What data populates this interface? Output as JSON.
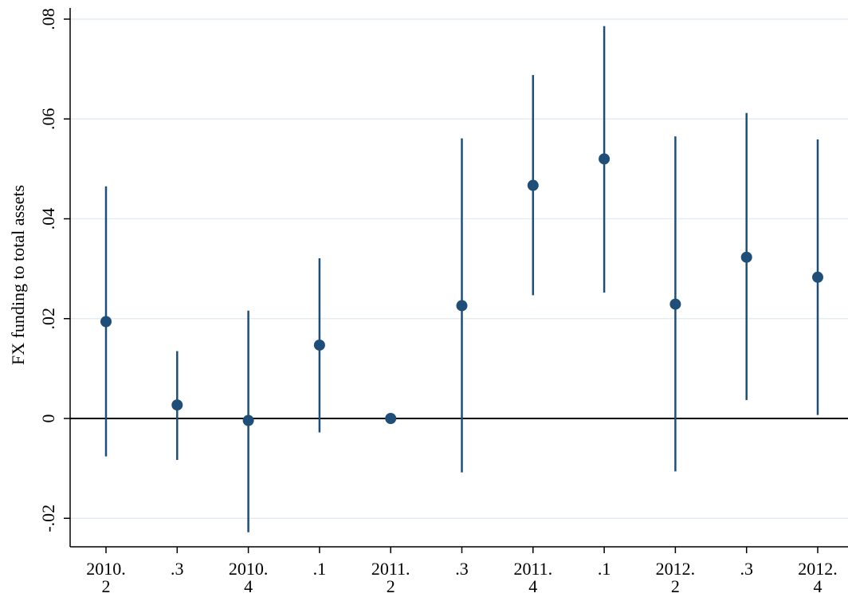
{
  "chart_data": {
    "type": "scatter",
    "subtype": "coefficient-plot-with-confidence-intervals",
    "title": "",
    "xlabel": "",
    "ylabel": "FX funding to total assets",
    "ylim": [
      -0.026,
      0.082
    ],
    "y_ticks": [
      {
        "value": -0.02,
        "label": "-.02"
      },
      {
        "value": 0,
        "label": "0"
      },
      {
        "value": 0.02,
        "label": ".02"
      },
      {
        "value": 0.04,
        "label": ".04"
      },
      {
        "value": 0.06,
        "label": ".06"
      },
      {
        "value": 0.08,
        "label": ".08"
      }
    ],
    "categories": [
      [
        "2010.",
        "2"
      ],
      [
        ".3"
      ],
      [
        "2010.",
        "4"
      ],
      [
        ".1"
      ],
      [
        "2011.",
        "2"
      ],
      [
        ".3"
      ],
      [
        "2011.",
        "4"
      ],
      [
        ".1"
      ],
      [
        "2012.",
        "2"
      ],
      [
        ".3"
      ],
      [
        "2012.",
        "4"
      ]
    ],
    "series": [
      {
        "estimates": [
          0.0194,
          0.0027,
          -0.0004,
          0.0147,
          0.0,
          0.0226,
          0.0467,
          0.052,
          0.0229,
          0.0323,
          0.0283
        ],
        "ci_low": [
          -0.0076,
          -0.0083,
          -0.0228,
          -0.0028,
          0.0,
          -0.0108,
          0.0247,
          0.0252,
          -0.0106,
          0.0037,
          0.0007
        ],
        "ci_high": [
          0.0465,
          0.0135,
          0.0216,
          0.0321,
          0.0,
          0.0561,
          0.0688,
          0.0786,
          0.0565,
          0.0612,
          0.0559
        ]
      }
    ],
    "reference_line": {
      "value": 0
    },
    "grid": true,
    "legend": "none",
    "colors": {
      "marker": "#1f4e79",
      "gridline": "#e3ecf0",
      "axis": "#000000",
      "reference_line": "#000000"
    }
  }
}
